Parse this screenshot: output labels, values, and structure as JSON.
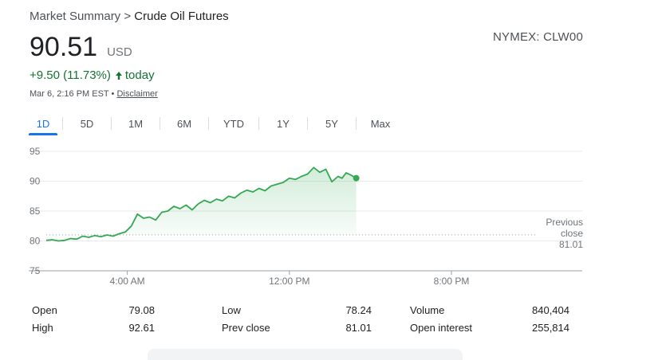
{
  "breadcrumb": {
    "parent": "Market Summary",
    "separator": ">",
    "current": "Crude Oil Futures"
  },
  "exchange": "NYMEX: CLW00",
  "price": {
    "value": "90.51",
    "currency": "USD"
  },
  "change": {
    "text": "+9.50 (11.73%)",
    "direction": "up",
    "period": "today"
  },
  "meta": {
    "timestamp": "Mar 6, 2:16 PM EST",
    "bullet": "•",
    "disclaimer": "Disclaimer"
  },
  "tabs": [
    {
      "label": "1D",
      "active": true
    },
    {
      "label": "5D"
    },
    {
      "label": "1M"
    },
    {
      "label": "6M"
    },
    {
      "label": "YTD"
    },
    {
      "label": "1Y"
    },
    {
      "label": "5Y"
    },
    {
      "label": "Max"
    }
  ],
  "colors": {
    "accent": "#1a73e8",
    "positive": "#137333",
    "line": "#34a853"
  },
  "chart_data": {
    "type": "area",
    "ylim": [
      75,
      95
    ],
    "yticks": [
      "95",
      "90",
      "85",
      "80",
      "75"
    ],
    "xticks": [
      "4:00 AM",
      "12:00 PM",
      "8:00 PM"
    ],
    "xrange_hours": [
      0,
      24
    ],
    "previous_close": {
      "value": 81.01,
      "label_line1": "Previous",
      "label_line2": "close",
      "label_value": "81.01"
    },
    "series": [
      {
        "x": [
          0,
          0.3,
          0.6,
          0.9,
          1.2,
          1.5,
          1.8,
          2.1,
          2.4,
          2.7,
          3.0,
          3.3,
          3.6,
          3.9,
          4.2,
          4.5,
          4.8,
          5.1,
          5.4,
          5.7,
          6.0,
          6.3,
          6.6,
          6.9,
          7.2,
          7.5,
          7.8,
          8.1,
          8.4,
          8.7,
          9.0,
          9.3,
          9.6,
          9.9,
          10.2,
          10.5,
          10.8,
          11.1,
          11.4,
          11.7,
          12.0,
          12.3,
          12.6,
          12.9,
          13.2,
          13.5,
          13.8,
          14.1,
          14.4,
          14.6,
          14.8,
          15.0,
          15.2,
          15.3
        ],
        "y": [
          80.1,
          80.2,
          80.0,
          80.1,
          80.4,
          80.3,
          80.8,
          80.6,
          80.9,
          80.7,
          81.0,
          80.8,
          81.2,
          81.5,
          82.5,
          84.5,
          83.8,
          84.0,
          83.5,
          84.8,
          85.0,
          85.8,
          85.4,
          86.0,
          85.2,
          86.2,
          86.8,
          86.4,
          87.0,
          86.7,
          87.5,
          87.2,
          88.0,
          88.5,
          88.2,
          88.8,
          88.4,
          89.2,
          89.5,
          89.8,
          90.5,
          90.3,
          90.8,
          91.2,
          92.3,
          91.5,
          92.0,
          89.9,
          90.8,
          90.5,
          91.4,
          91.1,
          90.7,
          90.51
        ]
      }
    ]
  },
  "stats": {
    "open": {
      "label": "Open",
      "value": "79.08"
    },
    "high": {
      "label": "High",
      "value": "92.61"
    },
    "low": {
      "label": "Low",
      "value": "78.24"
    },
    "prev_close": {
      "label": "Prev close",
      "value": "81.01"
    },
    "volume": {
      "label": "Volume",
      "value": "840,404"
    },
    "open_interest": {
      "label": "Open interest",
      "value": "255,814"
    }
  }
}
